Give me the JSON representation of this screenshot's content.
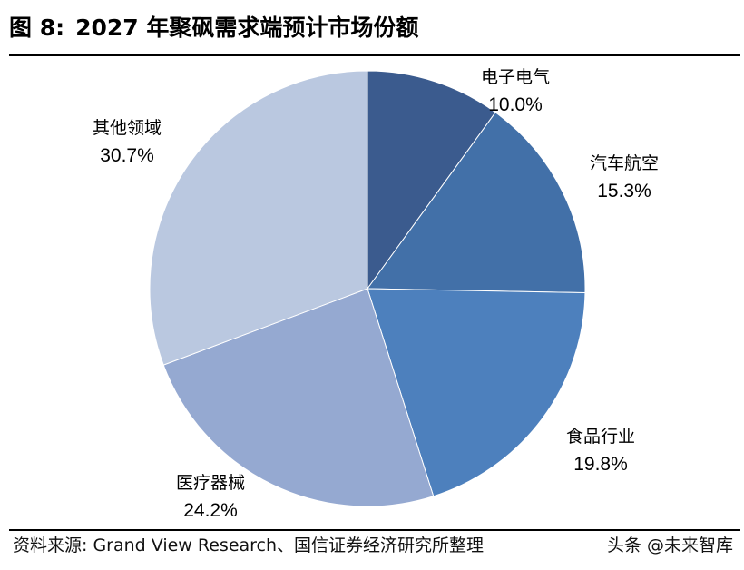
{
  "figure": {
    "number": "图 8:",
    "title": "2027 年聚砜需求端预计市场份额"
  },
  "chart_data": {
    "type": "pie",
    "title": "",
    "unit": "%",
    "slices": [
      {
        "label": "电子电气",
        "value": 10.0,
        "value_text": "10.0%",
        "color": "#3b5b8e"
      },
      {
        "label": "汽车航空",
        "value": 15.3,
        "value_text": "15.3%",
        "color": "#4270a8"
      },
      {
        "label": "食品行业",
        "value": 19.8,
        "value_text": "19.8%",
        "color": "#4d80bd"
      },
      {
        "label": "医疗器械",
        "value": 24.2,
        "value_text": "24.2%",
        "color": "#95a9d1"
      },
      {
        "label": "其他领域",
        "value": 30.7,
        "value_text": "30.7%",
        "color": "#bac8e0"
      }
    ],
    "start_angle": "12 o'clock",
    "direction": "clockwise",
    "legend": "none",
    "data_labels": "outside, category name above percentage"
  },
  "footer": {
    "source": "资料来源: Grand View Research、国信证券经济研究所整理",
    "watermark": "头条 @未来智库"
  }
}
